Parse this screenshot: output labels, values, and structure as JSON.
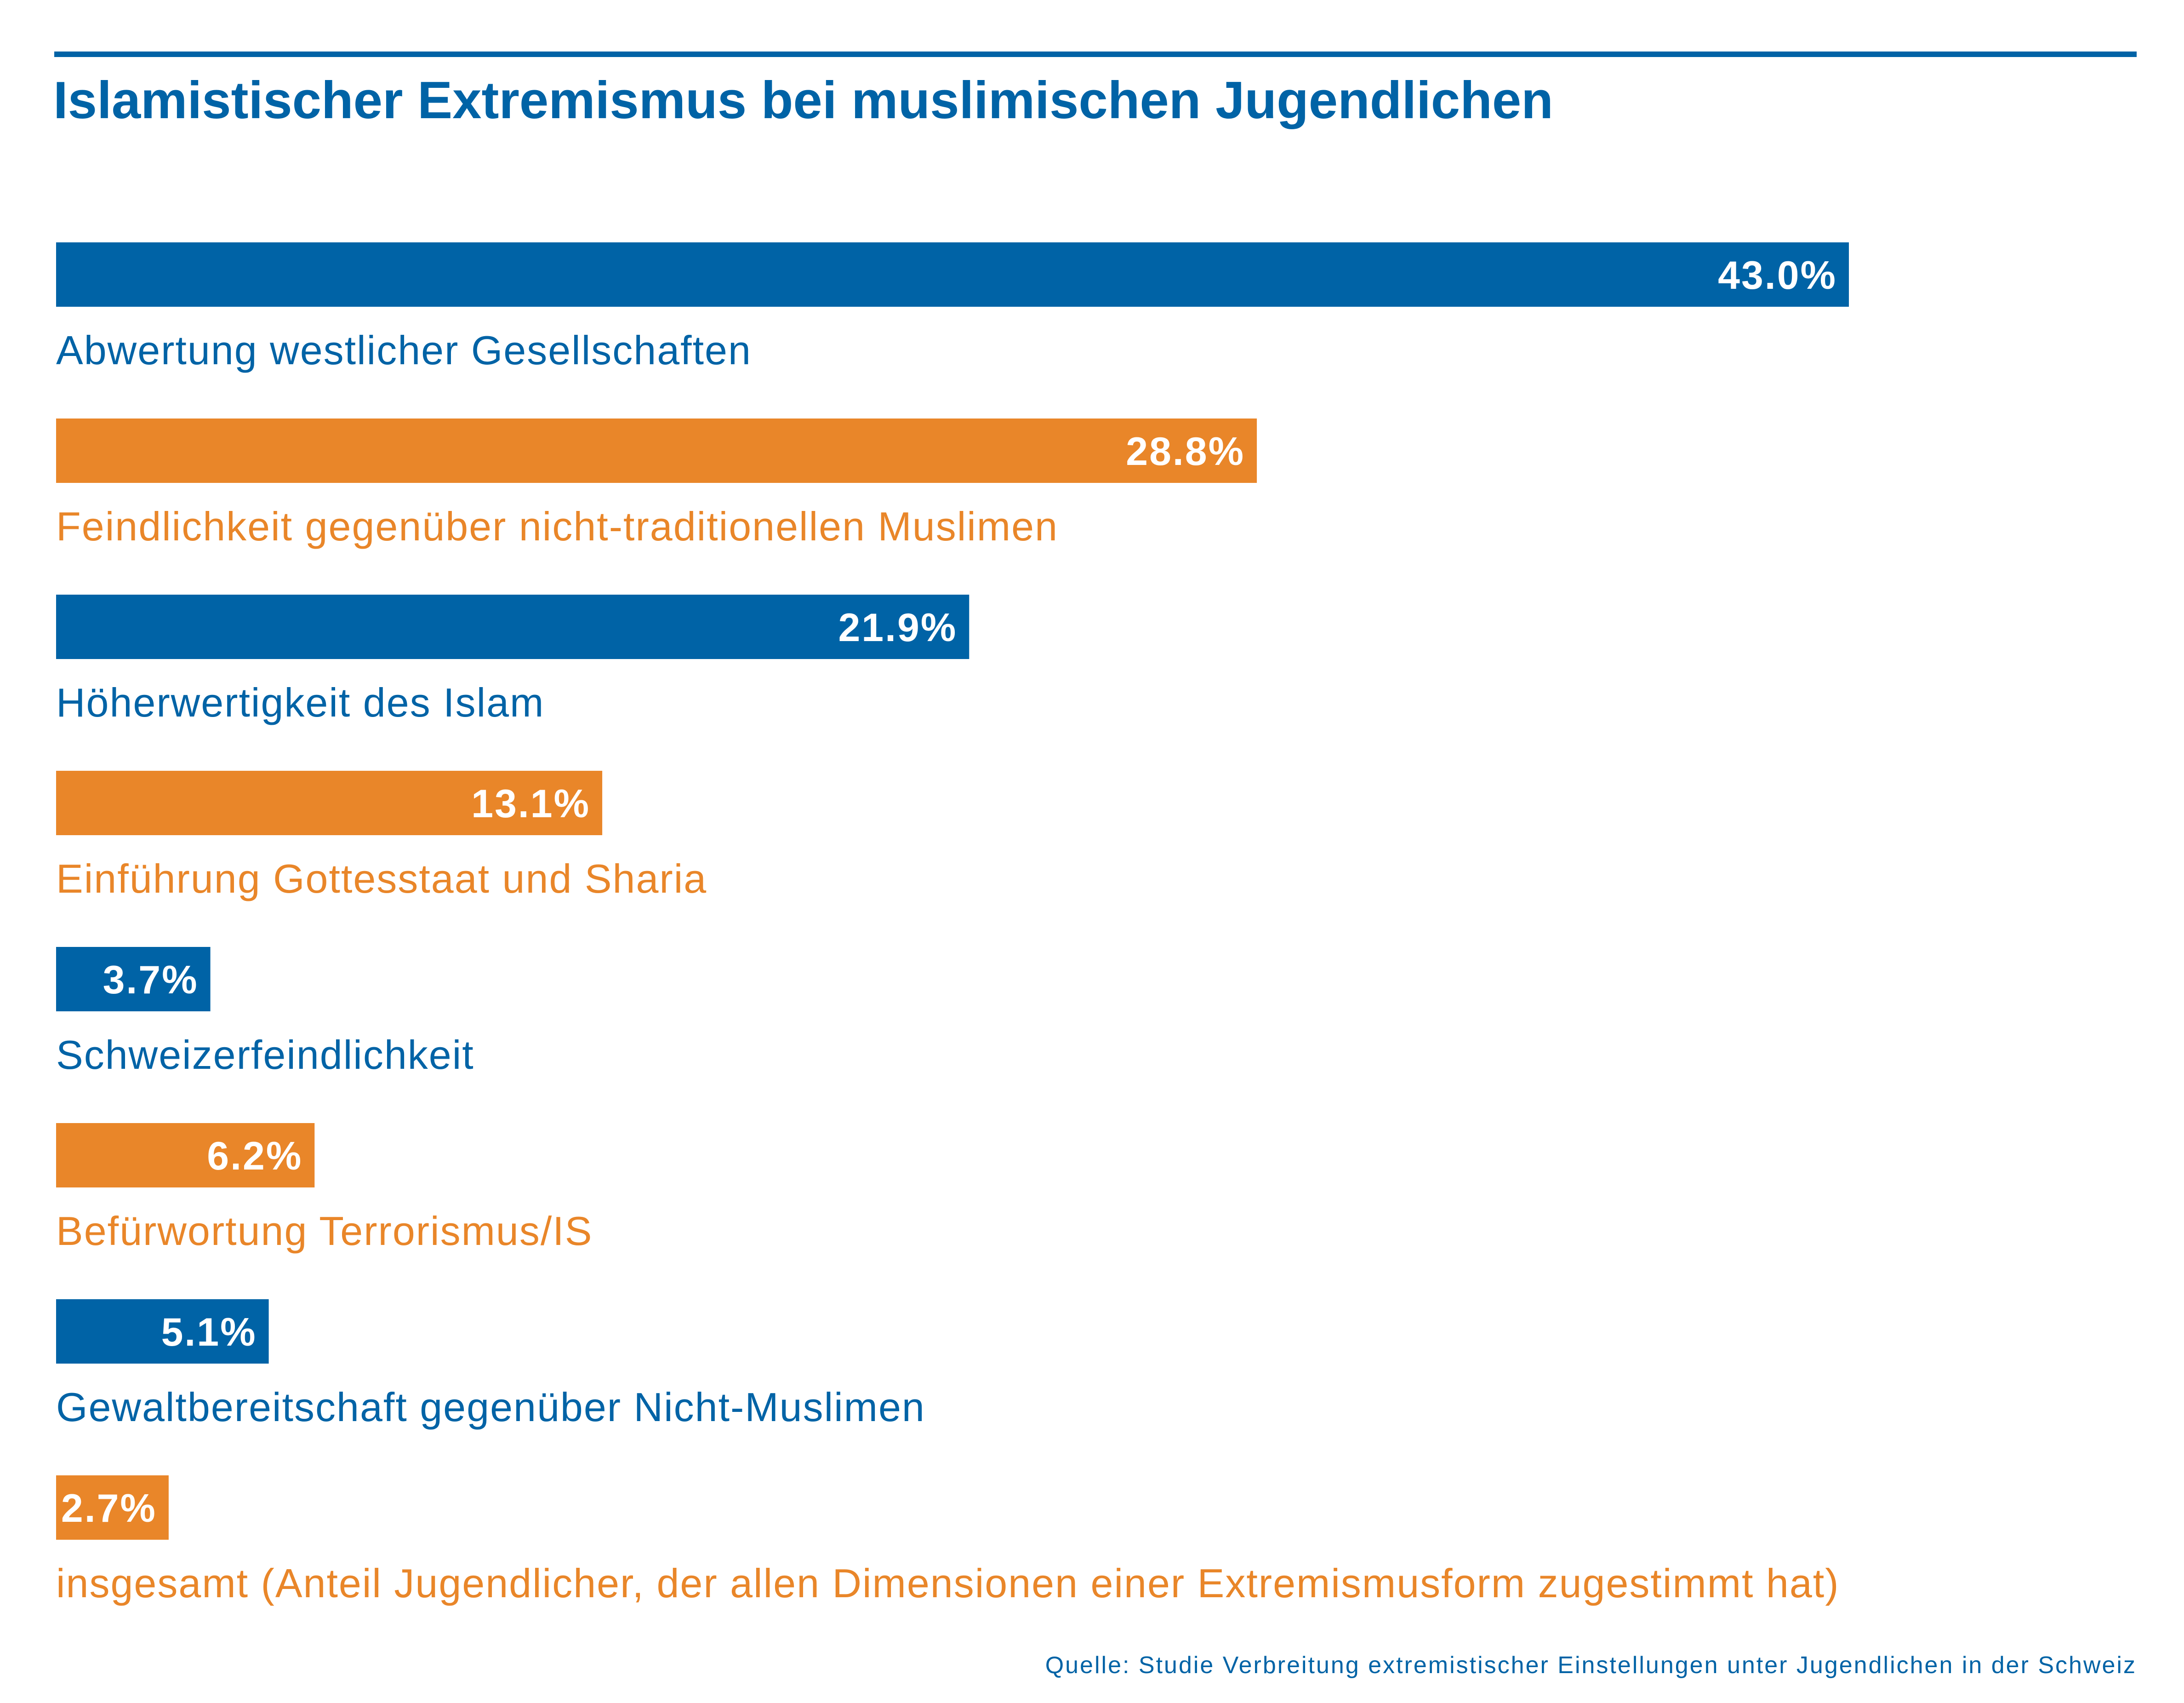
{
  "chart_data": {
    "type": "bar",
    "orientation": "horizontal",
    "title": "Islamistischer Extremismus bei muslimischen Jugendlichen",
    "categories": [
      "Abwertung westlicher Gesellschaften",
      "Feindlichkeit gegenüber nicht-traditionellen Muslimen",
      "Höherwertigkeit des Islam",
      "Einführung Gottesstaat und Sharia",
      "Schweizerfeindlichkeit",
      "Befürwortung Terrorismus/IS",
      "Gewaltbereitschaft gegenüber Nicht-Muslimen",
      "insgesamt (Anteil Jugendlicher, der allen Dimensionen einer Extremismusform zugestimmt hat)"
    ],
    "values": [
      43.0,
      28.8,
      21.9,
      13.1,
      3.7,
      6.2,
      5.1,
      2.7
    ],
    "value_labels": [
      "43.0%",
      "28.8%",
      "21.9%",
      "13.1%",
      "3.7%",
      "6.2%",
      "5.1%",
      "2.7%"
    ],
    "unit": "%",
    "xlim": [
      0,
      43
    ],
    "grid": false,
    "legend": "none",
    "source": "Quelle: Studie Verbreitung extremistischer Einstellungen unter Jugendlichen in der Schweiz"
  },
  "colors": {
    "blue": "#0063a6",
    "orange": "#e98629",
    "bar_color_sequence": [
      "blue",
      "orange",
      "blue",
      "orange",
      "blue",
      "orange",
      "blue",
      "orange"
    ]
  }
}
